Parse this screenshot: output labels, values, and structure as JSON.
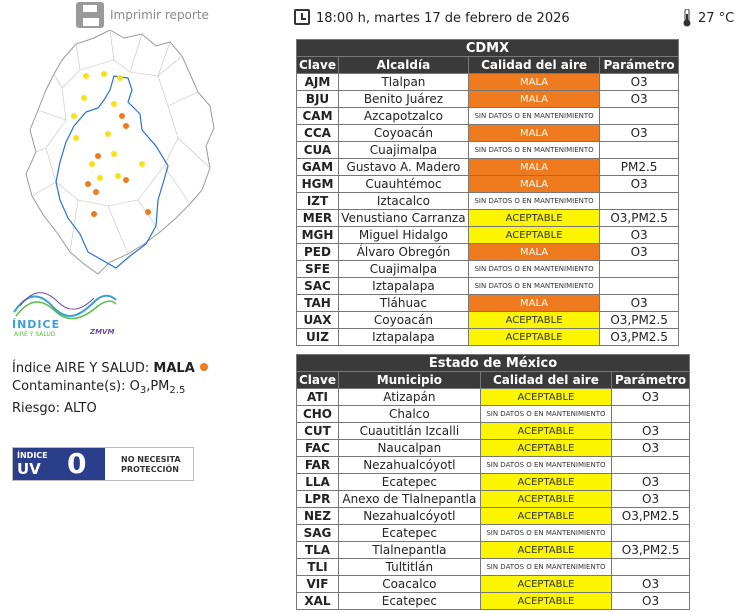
{
  "header": {
    "print_label": "Imprimir reporte",
    "datetime": "18:00 h, martes 17 de febrero de 2026",
    "temperature": "27 °C"
  },
  "logo": {
    "line1": "ÍNDICE",
    "line2": "AIRE Y SALUD",
    "line3": "ZMVM"
  },
  "summary": {
    "index_label": "Índice AIRE Y SALUD:",
    "index_value": "MALA",
    "pollutant_label": "Contaminante(s):",
    "pollutant_value": "O",
    "pollutant_sub1": "3",
    "pollutant_mid": ",PM",
    "pollutant_sub2": "2.5",
    "risk_label": "Riesgo:",
    "risk_value": "ALTO"
  },
  "uv": {
    "label_top": "ÍNDICE",
    "label_uv": "UV",
    "value": "0",
    "message_line1": "NO NECESITA",
    "message_line2": "PROTECCIÓN"
  },
  "colors": {
    "mala": "#f07b1f",
    "aceptable": "#fbf500",
    "header_bg": "#3a3a3a"
  },
  "cdmx": {
    "title": "CDMX",
    "columns": [
      "Clave",
      "Alcaldía",
      "Calidad del aire",
      "Parámetro"
    ],
    "rows": [
      {
        "clave": "AJM",
        "nombre": "Tlalpan",
        "calidad": "MALA",
        "status": "mala",
        "param": "O3"
      },
      {
        "clave": "BJU",
        "nombre": "Benito Juárez",
        "calidad": "MALA",
        "status": "mala",
        "param": "O3"
      },
      {
        "clave": "CAM",
        "nombre": "Azcapotzalco",
        "calidad": "SIN DATOS O EN MANTENIMIENTO",
        "status": "sind",
        "param": ""
      },
      {
        "clave": "CCA",
        "nombre": "Coyoacán",
        "calidad": "MALA",
        "status": "mala",
        "param": "O3"
      },
      {
        "clave": "CUA",
        "nombre": "Cuajimalpa",
        "calidad": "SIN DATOS O EN MANTENIMIENTO",
        "status": "sind",
        "param": ""
      },
      {
        "clave": "GAM",
        "nombre": "Gustavo A. Madero",
        "calidad": "MALA",
        "status": "mala",
        "param": "PM2.5"
      },
      {
        "clave": "HGM",
        "nombre": "Cuauhtémoc",
        "calidad": "MALA",
        "status": "mala",
        "param": "O3"
      },
      {
        "clave": "IZT",
        "nombre": "Iztacalco",
        "calidad": "SIN DATOS O EN MANTENIMIENTO",
        "status": "sind",
        "param": ""
      },
      {
        "clave": "MER",
        "nombre": "Venustiano Carranza",
        "calidad": "ACEPTABLE",
        "status": "acep",
        "param": "O3,PM2.5"
      },
      {
        "clave": "MGH",
        "nombre": "Miguel Hidalgo",
        "calidad": "ACEPTABLE",
        "status": "acep",
        "param": "O3"
      },
      {
        "clave": "PED",
        "nombre": "Álvaro Obregón",
        "calidad": "MALA",
        "status": "mala",
        "param": "O3"
      },
      {
        "clave": "SFE",
        "nombre": "Cuajimalpa",
        "calidad": "SIN DATOS O EN MANTENIMIENTO",
        "status": "sind",
        "param": ""
      },
      {
        "clave": "SAC",
        "nombre": "Iztapalapa",
        "calidad": "SIN DATOS O EN MANTENIMIENTO",
        "status": "sind",
        "param": ""
      },
      {
        "clave": "TAH",
        "nombre": "Tláhuac",
        "calidad": "MALA",
        "status": "mala",
        "param": "O3"
      },
      {
        "clave": "UAX",
        "nombre": "Coyoacán",
        "calidad": "ACEPTABLE",
        "status": "acep",
        "param": "O3,PM2.5"
      },
      {
        "clave": "UIZ",
        "nombre": "Iztapalapa",
        "calidad": "ACEPTABLE",
        "status": "acep",
        "param": "O3,PM2.5"
      }
    ]
  },
  "edomex": {
    "title": "Estado de México",
    "columns": [
      "Clave",
      "Municipio",
      "Calidad del aire",
      "Parámetro"
    ],
    "rows": [
      {
        "clave": "ATI",
        "nombre": "Atizapán",
        "calidad": "ACEPTABLE",
        "status": "acep",
        "param": "O3"
      },
      {
        "clave": "CHO",
        "nombre": "Chalco",
        "calidad": "SIN DATOS O EN MANTENIMIENTO",
        "status": "sind",
        "param": ""
      },
      {
        "clave": "CUT",
        "nombre": "Cuautitlán Izcalli",
        "calidad": "ACEPTABLE",
        "status": "acep",
        "param": "O3"
      },
      {
        "clave": "FAC",
        "nombre": "Naucalpan",
        "calidad": "ACEPTABLE",
        "status": "acep",
        "param": "O3"
      },
      {
        "clave": "FAR",
        "nombre": "Nezahualcóyotl",
        "calidad": "SIN DATOS O EN MANTENIMIENTO",
        "status": "sind",
        "param": ""
      },
      {
        "clave": "LLA",
        "nombre": "Ecatepec",
        "calidad": "ACEPTABLE",
        "status": "acep",
        "param": "O3"
      },
      {
        "clave": "LPR",
        "nombre": "Anexo de Tlalnepantla",
        "calidad": "ACEPTABLE",
        "status": "acep",
        "param": "O3"
      },
      {
        "clave": "NEZ",
        "nombre": "Nezahualcóyotl",
        "calidad": "ACEPTABLE",
        "status": "acep",
        "param": "O3,PM2.5"
      },
      {
        "clave": "SAG",
        "nombre": "Ecatepec",
        "calidad": "SIN DATOS O EN MANTENIMIENTO",
        "status": "sind",
        "param": ""
      },
      {
        "clave": "TLA",
        "nombre": "Tlalnepantla",
        "calidad": "ACEPTABLE",
        "status": "acep",
        "param": "O3,PM2.5"
      },
      {
        "clave": "TLI",
        "nombre": "Tultitlán",
        "calidad": "SIN DATOS O EN MANTENIMIENTO",
        "status": "sind",
        "param": ""
      },
      {
        "clave": "VIF",
        "nombre": "Coacalco",
        "calidad": "ACEPTABLE",
        "status": "acep",
        "param": "O3"
      },
      {
        "clave": "XAL",
        "nombre": "Ecatepec",
        "calidad": "ACEPTABLE",
        "status": "acep",
        "param": "O3"
      }
    ]
  }
}
